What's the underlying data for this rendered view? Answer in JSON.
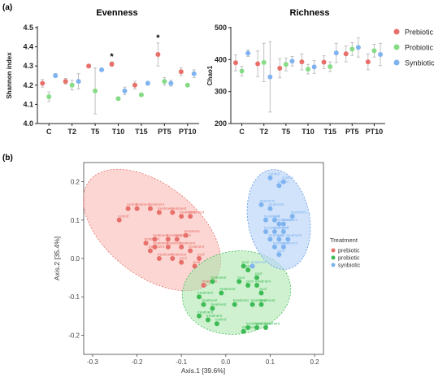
{
  "panel_a_label": "(a)",
  "panel_b_label": "(b)",
  "legend_top": [
    {
      "name": "Prebiotic",
      "color": "#e8706a"
    },
    {
      "name": "Probiotic",
      "color": "#86dc86"
    },
    {
      "name": "Synbiotic",
      "color": "#7fb3f0"
    }
  ],
  "chart_data": [
    {
      "type": "scatter",
      "title": "Evenness",
      "xlabel": "",
      "ylabel": "Shannon index",
      "ylim": [
        4.0,
        4.5
      ],
      "yticks": [
        "4.0",
        "4.1",
        "4.2",
        "4.3",
        "4.4",
        "4.5"
      ],
      "categories": [
        "C",
        "T2",
        "T5",
        "T10",
        "T15",
        "PT5",
        "PT10"
      ],
      "series": [
        {
          "name": "Prebiotic",
          "color": "#e8706a",
          "values": [
            4.21,
            4.22,
            4.3,
            4.31,
            4.2,
            4.36,
            4.27
          ],
          "err": [
            0.02,
            0.015,
            0.008,
            0.012,
            0.02,
            0.06,
            0.02
          ]
        },
        {
          "name": "Probiotic",
          "color": "#86dc86",
          "values": [
            4.14,
            4.2,
            4.17,
            4.13,
            4.15,
            4.22,
            4.2
          ],
          "err": [
            0.025,
            0.025,
            0.12,
            0.003,
            0.003,
            0.02,
            0.003
          ]
        },
        {
          "name": "Synbiotic",
          "color": "#7fb3f0",
          "values": [
            4.25,
            4.22,
            4.28,
            4.17,
            4.21,
            4.21,
            4.26
          ],
          "err": [
            0.01,
            0.04,
            0.005,
            0.02,
            0.01,
            0.015,
            0.02
          ]
        }
      ],
      "annotations": [
        {
          "category": "T10",
          "series": "Prebiotic",
          "text": "*"
        },
        {
          "category": "PT5",
          "series": "Prebiotic",
          "text": "*"
        }
      ]
    },
    {
      "type": "scatter",
      "title": "Richness",
      "xlabel": "",
      "ylabel": "Chao1",
      "ylim": [
        200,
        500
      ],
      "yticks": [
        "200",
        "300",
        "400",
        "500"
      ],
      "categories": [
        "C",
        "T2",
        "T5",
        "T10",
        "T15",
        "PT5",
        "PT10"
      ],
      "series": [
        {
          "name": "Prebiotic",
          "color": "#e8706a",
          "values": [
            390,
            387,
            373,
            393,
            392,
            418,
            393
          ],
          "err": [
            25,
            40,
            30,
            25,
            20,
            25,
            25
          ]
        },
        {
          "name": "Probiotic",
          "color": "#86dc86",
          "values": [
            364,
            391,
            385,
            370,
            378,
            433,
            428
          ],
          "err": [
            15,
            60,
            20,
            15,
            15,
            20,
            20
          ]
        },
        {
          "name": "Synbiotic",
          "color": "#7fb3f0",
          "values": [
            420,
            346,
            395,
            377,
            421,
            438,
            416
          ],
          "err": [
            10,
            110,
            15,
            20,
            30,
            30,
            35
          ]
        }
      ]
    },
    {
      "type": "scatter",
      "title": "",
      "xlabel": "Axis.1 [39.6%]",
      "ylabel": "Axis.2 [35.4%]",
      "xlim": [
        -0.32,
        0.22
      ],
      "ylim": [
        -0.25,
        0.25
      ],
      "xticks": [
        "-0.3",
        "-0.2",
        "-0.1",
        "0.0",
        "0.1",
        "0.2"
      ],
      "yticks": [
        "-0.2",
        "-0.1",
        "0.0",
        "0.1",
        "0.2"
      ],
      "legend_title": "Treatment",
      "legend_position": "right",
      "series": [
        {
          "name": "prebiotic",
          "color": "#e8706a",
          "points": [
            [
              -0.24,
              0.1
            ],
            [
              -0.22,
              0.13
            ],
            [
              -0.2,
              0.13
            ],
            [
              -0.17,
              0.13
            ],
            [
              -0.15,
              0.12
            ],
            [
              -0.12,
              0.12
            ],
            [
              -0.1,
              0.11
            ],
            [
              -0.08,
              0.11
            ],
            [
              -0.09,
              0.06
            ],
            [
              -0.11,
              0.05
            ],
            [
              -0.13,
              0.05
            ],
            [
              -0.16,
              0.05
            ],
            [
              -0.18,
              0.04
            ],
            [
              -0.16,
              0.03
            ],
            [
              -0.13,
              0.03
            ],
            [
              -0.1,
              0.03
            ],
            [
              -0.08,
              0.02
            ],
            [
              -0.06,
              0.0
            ],
            [
              -0.07,
              -0.02
            ],
            [
              -0.12,
              0.0
            ],
            [
              -0.15,
              0.0
            ],
            [
              -0.17,
              0.02
            ],
            [
              -0.1,
              -0.01
            ],
            [
              -0.05,
              -0.07
            ]
          ],
          "labels": [
            "control",
            "control",
            "treatment",
            "treatment",
            "treatment",
            "treatment",
            "treatment",
            "treatment",
            "treatment",
            "treatment",
            "treatment",
            "treatment",
            "treatment",
            "treatment",
            "treatment",
            "treatment",
            "treatment",
            "pool",
            "pool",
            "treatment",
            "treatment",
            "treatment",
            "pool",
            "treatment"
          ]
        },
        {
          "name": "probiotic",
          "color": "#3dbb55",
          "points": [
            [
              -0.06,
              -0.1
            ],
            [
              -0.05,
              -0.12
            ],
            [
              -0.03,
              -0.13
            ],
            [
              -0.06,
              -0.15
            ],
            [
              -0.04,
              -0.16
            ],
            [
              -0.02,
              -0.17
            ],
            [
              0.04,
              -0.02
            ],
            [
              0.05,
              -0.03
            ],
            [
              0.07,
              -0.05
            ],
            [
              0.03,
              -0.06
            ],
            [
              0.05,
              -0.07
            ],
            [
              0.07,
              -0.07
            ],
            [
              0.06,
              -0.12
            ],
            [
              0.08,
              -0.12
            ],
            [
              0.05,
              -0.18
            ],
            [
              0.07,
              -0.18
            ],
            [
              0.09,
              -0.18
            ],
            [
              0.04,
              -0.19
            ],
            [
              0.02,
              -0.12
            ],
            [
              -0.01,
              -0.09
            ],
            [
              -0.03,
              -0.06
            ],
            [
              0.08,
              -0.09
            ]
          ],
          "labels": [
            "treatment",
            "treatment",
            "treatment",
            "treatment",
            "treatment",
            "control",
            "pool",
            "pool",
            "pool",
            "pool",
            "pool",
            "treatment",
            "treatment",
            "treatment",
            "treatment",
            "treatment",
            "treatment",
            "treatment",
            "treatment",
            "treatment",
            "treatment",
            "pool"
          ]
        },
        {
          "name": "synbiotic",
          "color": "#7fb3f0",
          "points": [
            [
              0.1,
              0.21
            ],
            [
              0.12,
              0.19
            ],
            [
              0.13,
              0.2
            ],
            [
              0.08,
              0.14
            ],
            [
              0.1,
              0.13
            ],
            [
              0.09,
              0.1
            ],
            [
              0.11,
              0.1
            ],
            [
              0.12,
              0.09
            ],
            [
              0.13,
              0.09
            ],
            [
              0.09,
              0.07
            ],
            [
              0.11,
              0.07
            ],
            [
              0.13,
              0.07
            ],
            [
              0.1,
              0.05
            ],
            [
              0.12,
              0.05
            ],
            [
              0.14,
              0.05
            ],
            [
              0.11,
              0.03
            ],
            [
              0.13,
              0.03
            ],
            [
              0.12,
              0.01
            ],
            [
              0.06,
              -0.02
            ],
            [
              0.15,
              0.11
            ]
          ],
          "labels": [
            "control",
            "control",
            "control",
            "treatment",
            "treatment",
            "treatment",
            "pool",
            "treatment",
            "treatment",
            "treatment",
            "treatment",
            "pool",
            "treatment",
            "pool",
            "treatment",
            "treatment",
            "treatment",
            "pool",
            "treatment",
            "treatment"
          ]
        }
      ]
    }
  ]
}
